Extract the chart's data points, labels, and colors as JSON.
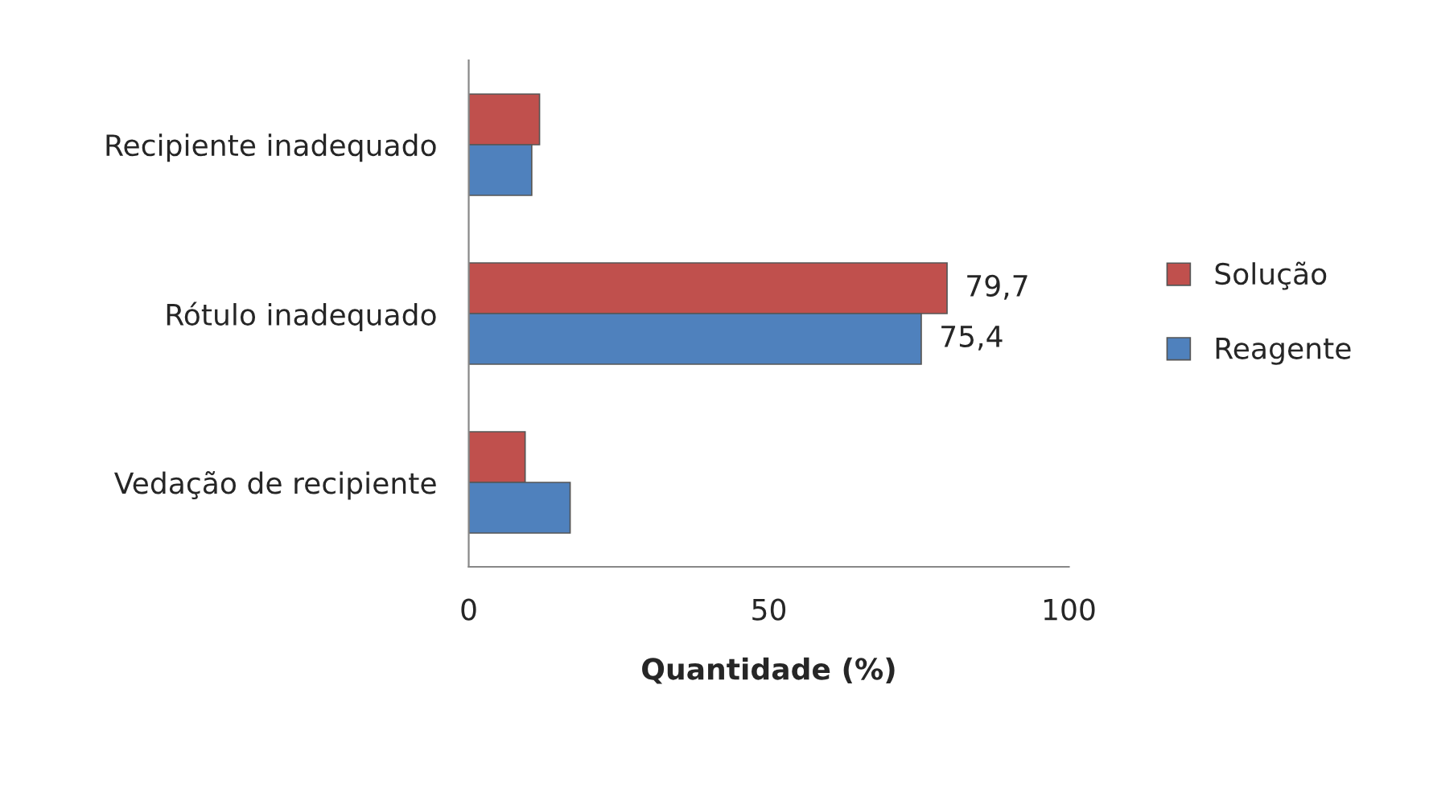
{
  "chart_data": {
    "type": "bar",
    "orientation": "horizontal",
    "xlabel": "Quantidade (%)",
    "categories": [
      "Recipiente inadequado",
      "Rótulo inadequado",
      "Vedação de recipiente"
    ],
    "series": [
      {
        "name": "Solução",
        "color": "#c0504d",
        "values": [
          11.8,
          79.7,
          9.4
        ],
        "value_labels": [
          null,
          "79,7",
          null
        ]
      },
      {
        "name": "Reagente",
        "color": "#4f81bd",
        "values": [
          10.5,
          75.4,
          16.9
        ],
        "value_labels": [
          null,
          "75,4",
          null
        ]
      }
    ],
    "xlim": [
      0,
      100
    ],
    "xticks": [
      0,
      50,
      100
    ],
    "grid": false,
    "legend": "right"
  }
}
